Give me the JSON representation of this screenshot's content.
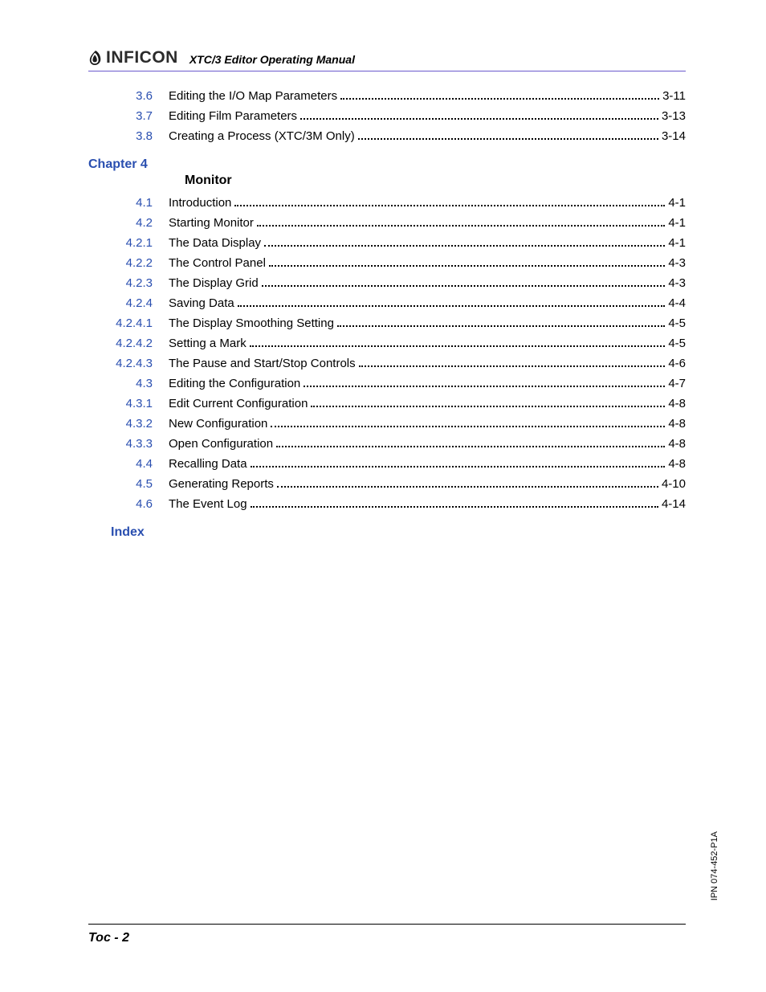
{
  "header": {
    "logo_text": "INFICON",
    "manual_title": "XTC/3 Editor Operating Manual"
  },
  "colors": {
    "link": "#2a4fb0",
    "rule": "#6a5acd",
    "text": "#000000",
    "background": "#ffffff"
  },
  "toc": {
    "pre_chapter": [
      {
        "num": "3.6",
        "title": "Editing the I/O Map Parameters",
        "page": "3-11"
      },
      {
        "num": "3.7",
        "title": "Editing Film Parameters",
        "page": "3-13"
      },
      {
        "num": "3.8",
        "title": "Creating a Process (XTC/3M Only)",
        "page": "3-14"
      }
    ],
    "chapter4": {
      "label": "Chapter 4",
      "title": "Monitor",
      "entries": [
        {
          "num": "4.1",
          "title": "Introduction",
          "page": "4-1"
        },
        {
          "num": "4.2",
          "title": "Starting Monitor",
          "page": "4-1"
        },
        {
          "num": "4.2.1",
          "title": "The Data Display",
          "page": "4-1"
        },
        {
          "num": "4.2.2",
          "title": "The Control Panel",
          "page": "4-3"
        },
        {
          "num": "4.2.3",
          "title": "The Display Grid",
          "page": "4-3"
        },
        {
          "num": "4.2.4",
          "title": "Saving Data",
          "page": "4-4"
        },
        {
          "num": "4.2.4.1",
          "title": "The Display Smoothing Setting",
          "page": "4-5"
        },
        {
          "num": "4.2.4.2",
          "title": "Setting a Mark",
          "page": "4-5"
        },
        {
          "num": "4.2.4.3",
          "title": "The Pause and Start/Stop Controls",
          "page": "4-6"
        },
        {
          "num": "4.3",
          "title": "Editing the Configuration",
          "page": "4-7"
        },
        {
          "num": "4.3.1",
          "title": "Edit Current Configuration",
          "page": "4-8"
        },
        {
          "num": "4.3.2",
          "title": "New Configuration",
          "page": "4-8"
        },
        {
          "num": "4.3.3",
          "title": "Open Configuration",
          "page": "4-8"
        },
        {
          "num": "4.4",
          "title": "Recalling Data",
          "page": "4-8"
        },
        {
          "num": "4.5",
          "title": "Generating Reports",
          "page": "4-10"
        },
        {
          "num": "4.6",
          "title": "The Event Log",
          "page": "4-14"
        }
      ]
    },
    "index_label": "Index"
  },
  "footer": {
    "page_label": "Toc - 2"
  },
  "side_label": "IPN 074-452-P1A"
}
